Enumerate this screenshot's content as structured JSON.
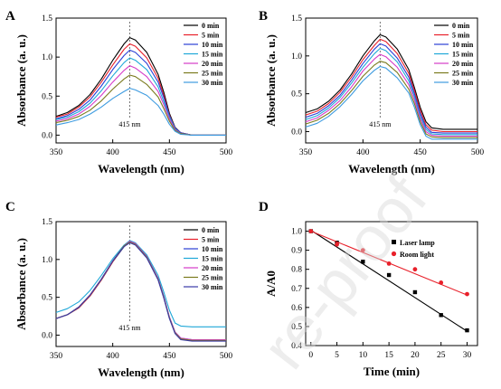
{
  "chart_data": [
    {
      "panel": "A",
      "type": "line",
      "xlabel": "Wavelength (nm)",
      "ylabel": "Absorbance (a. u.)",
      "xlim": [
        350,
        500
      ],
      "ylim": [
        -0.1,
        1.5
      ],
      "xticks": [
        350,
        400,
        450,
        500
      ],
      "yticks": [
        0.0,
        0.5,
        1.0,
        1.5
      ],
      "annotation": "415 nm",
      "legend_position": "top-right",
      "x": [
        350,
        360,
        370,
        380,
        390,
        400,
        410,
        415,
        420,
        430,
        440,
        445,
        450,
        455,
        460,
        470,
        480,
        490,
        500
      ],
      "series": [
        {
          "name": "0 min",
          "color": "#000000",
          "values": [
            0.24,
            0.29,
            0.38,
            0.52,
            0.72,
            0.96,
            1.17,
            1.25,
            1.22,
            1.06,
            0.78,
            0.55,
            0.28,
            0.1,
            0.03,
            0.0,
            0.0,
            0.0,
            0.0
          ]
        },
        {
          "name": "5 min",
          "color": "#e8202a",
          "values": [
            0.23,
            0.27,
            0.36,
            0.49,
            0.68,
            0.9,
            1.1,
            1.17,
            1.14,
            0.99,
            0.73,
            0.51,
            0.26,
            0.09,
            0.03,
            0.0,
            0.0,
            0.0,
            0.0
          ]
        },
        {
          "name": "10 min",
          "color": "#2b3fd6",
          "values": [
            0.21,
            0.25,
            0.33,
            0.45,
            0.63,
            0.84,
            1.02,
            1.09,
            1.06,
            0.92,
            0.68,
            0.48,
            0.25,
            0.09,
            0.03,
            0.0,
            0.0,
            0.0,
            0.0
          ]
        },
        {
          "name": "15 min",
          "color": "#1fa8d8",
          "values": [
            0.2,
            0.23,
            0.3,
            0.41,
            0.57,
            0.76,
            0.93,
            0.99,
            0.96,
            0.84,
            0.62,
            0.43,
            0.23,
            0.08,
            0.02,
            0.0,
            0.0,
            0.0,
            0.0
          ]
        },
        {
          "name": "20 min",
          "color": "#d63bc8",
          "values": [
            0.18,
            0.21,
            0.27,
            0.37,
            0.51,
            0.68,
            0.83,
            0.89,
            0.86,
            0.75,
            0.56,
            0.39,
            0.21,
            0.07,
            0.02,
            0.0,
            0.0,
            0.0,
            0.0
          ]
        },
        {
          "name": "25 min",
          "color": "#7a7a1e",
          "values": [
            0.16,
            0.19,
            0.24,
            0.32,
            0.44,
            0.59,
            0.72,
            0.77,
            0.75,
            0.65,
            0.49,
            0.34,
            0.18,
            0.06,
            0.02,
            0.0,
            0.0,
            0.0,
            0.0
          ]
        },
        {
          "name": "30 min",
          "color": "#3d9be0",
          "values": [
            0.13,
            0.16,
            0.2,
            0.27,
            0.36,
            0.47,
            0.56,
            0.6,
            0.58,
            0.51,
            0.38,
            0.27,
            0.14,
            0.05,
            0.01,
            0.0,
            0.0,
            0.0,
            0.0
          ]
        }
      ]
    },
    {
      "panel": "B",
      "type": "line",
      "xlabel": "Wavelength (nm)",
      "ylabel": "Absorbance (a. u.)",
      "xlim": [
        350,
        500
      ],
      "ylim": [
        -0.15,
        1.5
      ],
      "xticks": [
        350,
        400,
        450,
        500
      ],
      "yticks": [
        0.0,
        0.5,
        1.0,
        1.5
      ],
      "annotation": "415 nm",
      "legend_position": "top-right",
      "x": [
        350,
        360,
        370,
        380,
        390,
        400,
        410,
        415,
        420,
        430,
        440,
        445,
        450,
        455,
        460,
        470,
        480,
        490,
        500
      ],
      "series": [
        {
          "name": "0 min",
          "color": "#000000",
          "values": [
            0.25,
            0.3,
            0.4,
            0.55,
            0.76,
            1.0,
            1.2,
            1.28,
            1.25,
            1.09,
            0.82,
            0.58,
            0.32,
            0.13,
            0.05,
            0.03,
            0.03,
            0.03,
            0.03
          ]
        },
        {
          "name": "5 min",
          "color": "#e8202a",
          "values": [
            0.22,
            0.27,
            0.37,
            0.52,
            0.72,
            0.95,
            1.14,
            1.22,
            1.19,
            1.03,
            0.77,
            0.54,
            0.28,
            0.09,
            0.02,
            0.0,
            0.0,
            0.0,
            0.0
          ]
        },
        {
          "name": "10 min",
          "color": "#2b3fd6",
          "values": [
            0.19,
            0.24,
            0.34,
            0.48,
            0.68,
            0.9,
            1.09,
            1.16,
            1.13,
            0.97,
            0.72,
            0.5,
            0.24,
            0.06,
            -0.01,
            -0.02,
            -0.02,
            -0.02,
            -0.02
          ]
        },
        {
          "name": "15 min",
          "color": "#1fa8d8",
          "values": [
            0.16,
            0.21,
            0.31,
            0.45,
            0.64,
            0.85,
            1.03,
            1.1,
            1.07,
            0.92,
            0.67,
            0.46,
            0.2,
            0.03,
            -0.03,
            -0.04,
            -0.04,
            -0.04,
            -0.04
          ]
        },
        {
          "name": "20 min",
          "color": "#d63bc8",
          "values": [
            0.13,
            0.18,
            0.28,
            0.41,
            0.59,
            0.8,
            0.96,
            1.02,
            0.99,
            0.85,
            0.62,
            0.42,
            0.17,
            0.0,
            -0.05,
            -0.06,
            -0.06,
            -0.06,
            -0.06
          ]
        },
        {
          "name": "25 min",
          "color": "#7a7a1e",
          "values": [
            0.1,
            0.15,
            0.24,
            0.37,
            0.54,
            0.73,
            0.88,
            0.93,
            0.91,
            0.78,
            0.56,
            0.37,
            0.13,
            -0.03,
            -0.07,
            -0.08,
            -0.08,
            -0.08,
            -0.08
          ]
        },
        {
          "name": "30 min",
          "color": "#3d9be0",
          "values": [
            0.06,
            0.11,
            0.2,
            0.33,
            0.49,
            0.67,
            0.81,
            0.86,
            0.84,
            0.71,
            0.51,
            0.32,
            0.09,
            -0.06,
            -0.1,
            -0.1,
            -0.1,
            -0.1,
            -0.1
          ]
        }
      ]
    },
    {
      "panel": "C",
      "type": "line",
      "xlabel": "Wavelength (nm)",
      "ylabel": "Absorbance (a. u.)",
      "xlim": [
        350,
        500
      ],
      "ylim": [
        -0.15,
        1.5
      ],
      "xticks": [
        350,
        400,
        450,
        500
      ],
      "yticks": [
        0.0,
        0.5,
        1.0,
        1.5
      ],
      "annotation": "415 nm",
      "legend_position": "top-right",
      "x": [
        350,
        360,
        370,
        380,
        390,
        400,
        410,
        415,
        420,
        430,
        440,
        445,
        450,
        455,
        460,
        470,
        480,
        490,
        500
      ],
      "series": [
        {
          "name": "0 min",
          "color": "#000000",
          "values": [
            0.22,
            0.27,
            0.36,
            0.52,
            0.73,
            0.97,
            1.17,
            1.23,
            1.2,
            1.03,
            0.74,
            0.5,
            0.23,
            0.03,
            -0.05,
            -0.07,
            -0.07,
            -0.07,
            -0.07
          ]
        },
        {
          "name": "5 min",
          "color": "#e8202a",
          "values": [
            0.22,
            0.27,
            0.36,
            0.52,
            0.73,
            0.97,
            1.18,
            1.24,
            1.21,
            1.04,
            0.74,
            0.5,
            0.23,
            0.03,
            -0.05,
            -0.07,
            -0.07,
            -0.07,
            -0.07
          ]
        },
        {
          "name": "10 min",
          "color": "#2b3fd6",
          "values": [
            0.22,
            0.27,
            0.37,
            0.53,
            0.74,
            0.98,
            1.18,
            1.24,
            1.21,
            1.04,
            0.75,
            0.51,
            0.24,
            0.04,
            -0.04,
            -0.06,
            -0.06,
            -0.06,
            -0.06
          ]
        },
        {
          "name": "15 min",
          "color": "#1fa8d8",
          "values": [
            0.3,
            0.35,
            0.44,
            0.59,
            0.79,
            1.01,
            1.19,
            1.25,
            1.22,
            1.06,
            0.79,
            0.57,
            0.33,
            0.16,
            0.12,
            0.11,
            0.11,
            0.11,
            0.11
          ]
        },
        {
          "name": "20 min",
          "color": "#d63bc8",
          "values": [
            0.22,
            0.27,
            0.37,
            0.53,
            0.74,
            0.98,
            1.18,
            1.24,
            1.21,
            1.04,
            0.75,
            0.51,
            0.24,
            0.04,
            -0.04,
            -0.06,
            -0.06,
            -0.06,
            -0.06
          ]
        },
        {
          "name": "25 min",
          "color": "#7a7a1e",
          "values": [
            0.22,
            0.27,
            0.37,
            0.53,
            0.74,
            0.98,
            1.18,
            1.23,
            1.2,
            1.03,
            0.74,
            0.5,
            0.23,
            0.03,
            -0.05,
            -0.07,
            -0.07,
            -0.07,
            -0.07
          ]
        },
        {
          "name": "30 min",
          "color": "#3a3aa8",
          "values": [
            0.22,
            0.27,
            0.37,
            0.53,
            0.74,
            0.98,
            1.17,
            1.22,
            1.19,
            1.02,
            0.73,
            0.49,
            0.22,
            0.02,
            -0.06,
            -0.08,
            -0.08,
            -0.08,
            -0.08
          ]
        }
      ]
    },
    {
      "panel": "D",
      "type": "scatter",
      "xlabel": "Time (min)",
      "ylabel": "A/A0",
      "xlim": [
        -1,
        32
      ],
      "ylim": [
        0.4,
        1.05
      ],
      "xticks": [
        0,
        5,
        10,
        15,
        20,
        25,
        30
      ],
      "yticks": [
        0.4,
        0.5,
        0.6,
        0.7,
        0.8,
        0.9,
        1.0
      ],
      "legend_position": "top-right",
      "series": [
        {
          "name": "Laser lamp",
          "color": "#000000",
          "marker": "square",
          "x": [
            0,
            5,
            10,
            15,
            20,
            25,
            30
          ],
          "y": [
            1.0,
            0.94,
            0.84,
            0.77,
            0.68,
            0.56,
            0.48
          ],
          "fit": [
            [
              0,
              1.005
            ],
            [
              30,
              0.475
            ]
          ]
        },
        {
          "name": "Room light",
          "color": "#e8202a",
          "marker": "circle",
          "x": [
            0,
            5,
            10,
            15,
            20,
            25,
            30
          ],
          "y": [
            1.0,
            0.93,
            0.9,
            0.83,
            0.8,
            0.73,
            0.67
          ],
          "fit": [
            [
              0,
              1.0
            ],
            [
              30,
              0.665
            ]
          ]
        }
      ]
    }
  ]
}
